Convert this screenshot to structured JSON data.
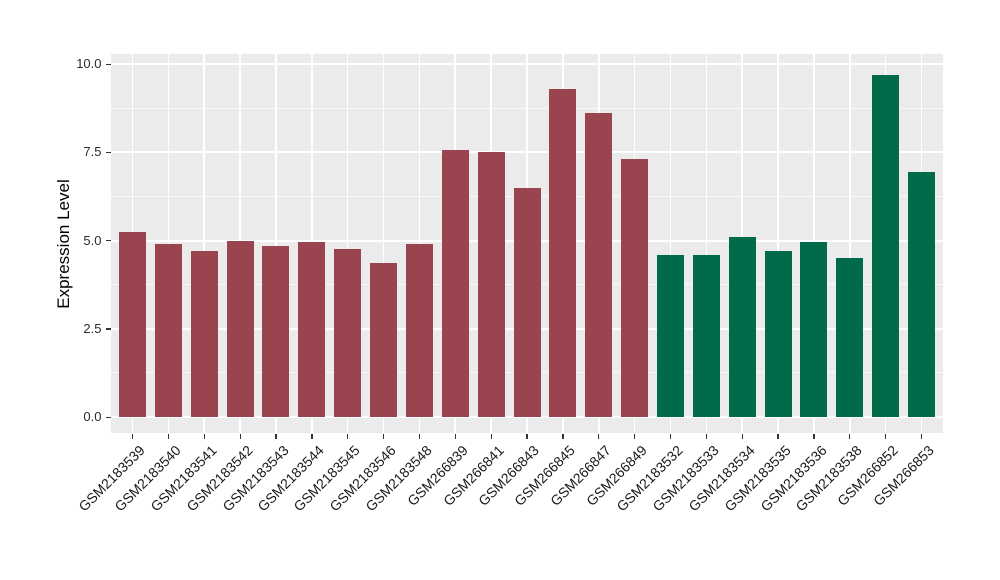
{
  "figure": {
    "background": "#FFFFFF",
    "panel_background": "#EBEBEB",
    "grid_color": "#FFFFFF",
    "tick_mark_color": "#333333",
    "axis_text_color": "#1A1A1A"
  },
  "chart_data": {
    "type": "bar",
    "title": "",
    "xlabel": "",
    "ylabel": "Expression Level",
    "ylim": [
      0,
      10.3
    ],
    "grid": true,
    "legend_position": "none",
    "yticks": [
      0,
      2.5,
      5,
      7.5,
      10
    ],
    "ytick_labels": [
      "0.0",
      "2.5",
      "5.0",
      "7.5",
      "10.0"
    ],
    "yticks_minor": [
      1.25,
      3.75,
      6.25,
      8.75
    ],
    "categories": [
      "GSM2183539",
      "GSM2183540",
      "GSM2183541",
      "GSM2183542",
      "GSM2183543",
      "GSM2183544",
      "GSM2183545",
      "GSM2183546",
      "GSM2183548",
      "GSM266839",
      "GSM266841",
      "GSM266843",
      "GSM266845",
      "GSM266847",
      "GSM266849",
      "GSM2183532",
      "GSM2183533",
      "GSM2183534",
      "GSM2183535",
      "GSM2183536",
      "GSM2183538",
      "GSM266852",
      "GSM266853"
    ],
    "values": [
      5.25,
      4.9,
      4.7,
      5.0,
      4.85,
      4.95,
      4.75,
      4.35,
      4.9,
      7.55,
      7.5,
      6.5,
      9.3,
      8.6,
      7.3,
      4.6,
      4.6,
      5.1,
      4.7,
      4.95,
      4.5,
      9.7,
      6.95
    ],
    "bar_colors": [
      "#9A4450",
      "#9A4450",
      "#9A4450",
      "#9A4450",
      "#9A4450",
      "#9A4450",
      "#9A4450",
      "#9A4450",
      "#9A4450",
      "#9A4450",
      "#9A4450",
      "#9A4450",
      "#9A4450",
      "#9A4450",
      "#9A4450",
      "#006A4A",
      "#006A4A",
      "#006A4A",
      "#006A4A",
      "#006A4A",
      "#006A4A",
      "#006A4A",
      "#006A4A"
    ],
    "group_color_palette": {
      "maroon": "#9A4450",
      "green": "#006A4A"
    }
  }
}
